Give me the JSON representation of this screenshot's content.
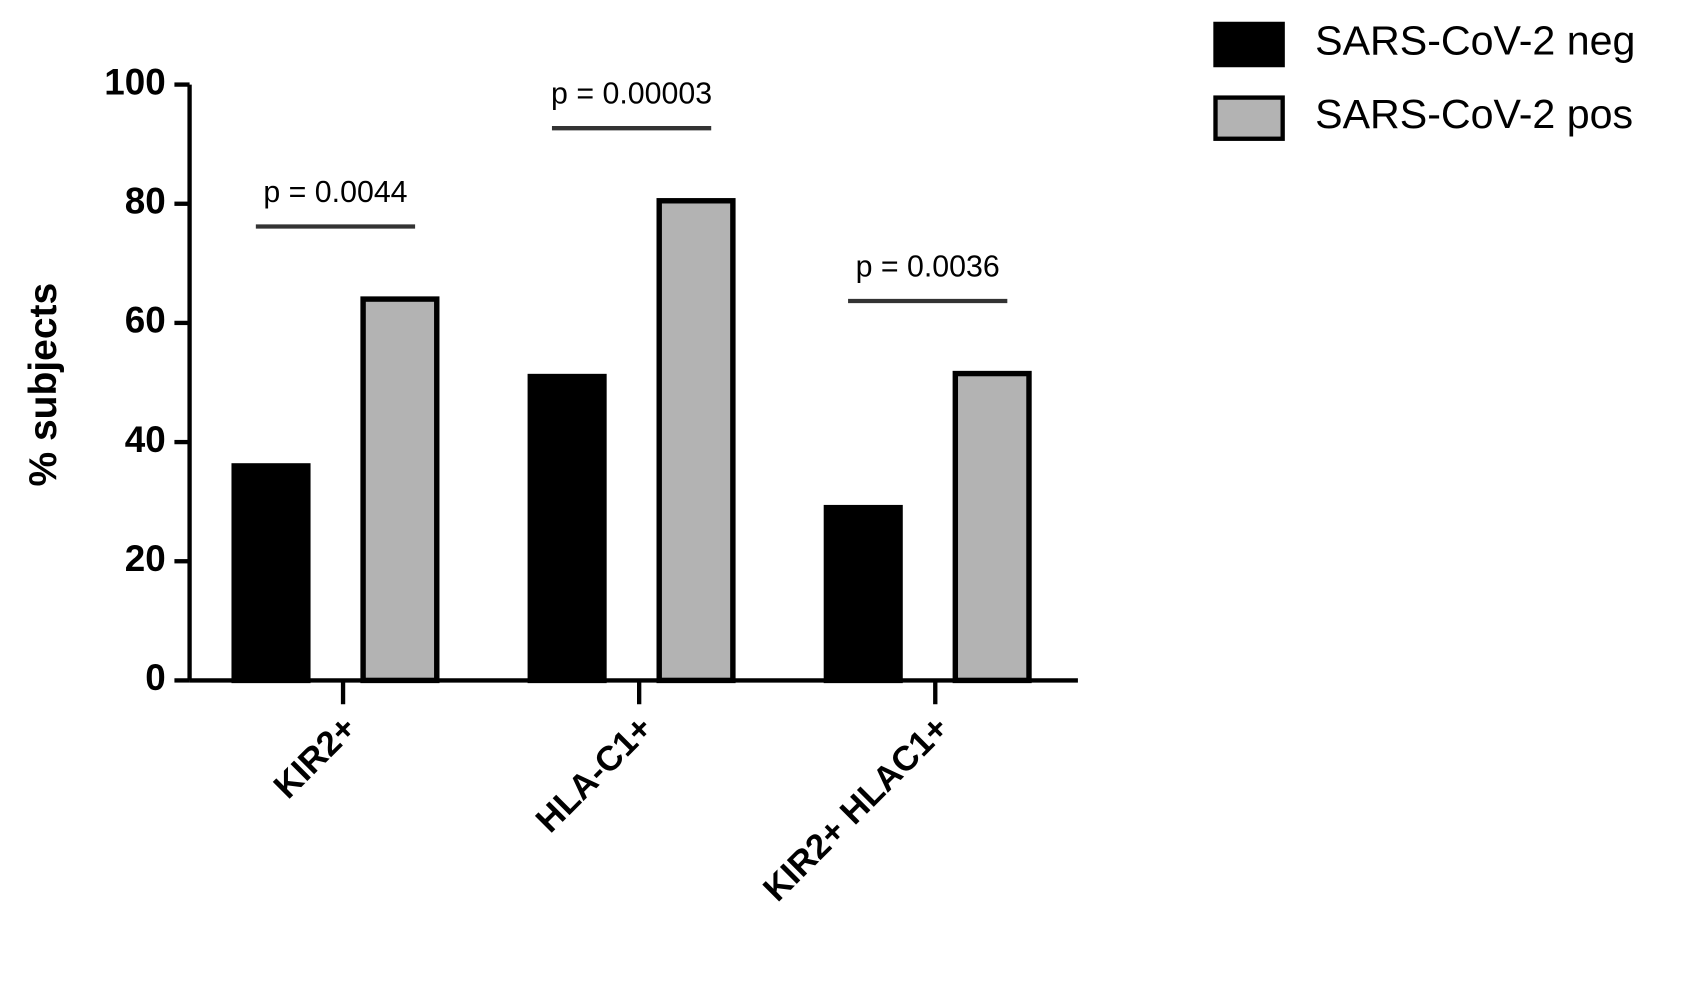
{
  "chart_data": {
    "type": "bar",
    "y_label": "% subjects",
    "categories": [
      "KIR2+",
      "HLA-C1+",
      "KIR2+ HLAC1+"
    ],
    "series": [
      {
        "name": "SARS-CoV-2 neg",
        "color": "#000000",
        "values": [
          36,
          51,
          29
        ]
      },
      {
        "name": "SARS-CoV-2 pos",
        "color": "#b3b3b3",
        "values": [
          64,
          80.5,
          51.5
        ]
      }
    ],
    "ylim": [
      0,
      100
    ],
    "yticks": [
      0,
      20,
      40,
      60,
      80,
      100
    ],
    "annotations": [
      "p = 0.0044",
      "p = 0.00003",
      "p = 0.0036"
    ],
    "legend": "top-right"
  }
}
